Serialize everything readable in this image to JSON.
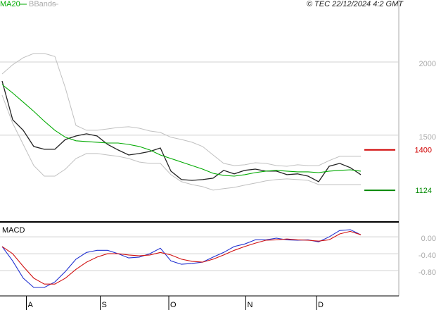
{
  "chart_data": [
    {
      "type": "line",
      "source": "© TEC 22/12/2024 4:2 GMT",
      "x": [
        0,
        1,
        2,
        3,
        4,
        5,
        6,
        7,
        8,
        9,
        10,
        11,
        12,
        13,
        14,
        15,
        16,
        17,
        18,
        19,
        20,
        21,
        22,
        23,
        24,
        25,
        26,
        27,
        28,
        29,
        30,
        31,
        32,
        33,
        34
      ],
      "xlim": [
        -0.2,
        37.6
      ],
      "xticks": [
        {
          "value": 2.3,
          "label": "A"
        },
        {
          "value": 9.3,
          "label": "S"
        },
        {
          "value": 15.8,
          "label": "O"
        },
        {
          "value": 23.1,
          "label": "N"
        },
        {
          "value": 29.8,
          "label": "D"
        }
      ],
      "ylim": [
        913,
        2423
      ],
      "yticks": [
        1500,
        2000
      ],
      "grid": true,
      "series": [
        {
          "color": "#222222",
          "values": [
            1870,
            1606,
            1534,
            1423,
            1404,
            1404,
            1471,
            1495,
            1510,
            1495,
            1437,
            1399,
            1365,
            1375,
            1389,
            1413,
            1255,
            1197,
            1192,
            1197,
            1207,
            1260,
            1236,
            1260,
            1269,
            1255,
            1255,
            1231,
            1236,
            1221,
            1183,
            1288,
            1308,
            1279,
            1231
          ]
        },
        {
          "name": "MA20",
          "color": "#00aa00",
          "values": [
            1846,
            1788,
            1726,
            1663,
            1596,
            1534,
            1486,
            1462,
            1457,
            1452,
            1447,
            1447,
            1437,
            1423,
            1399,
            1365,
            1341,
            1317,
            1293,
            1269,
            1240,
            1226,
            1221,
            1231,
            1245,
            1255,
            1260,
            1255,
            1250,
            1250,
            1245,
            1255,
            1260,
            1264,
            1255
          ]
        },
        {
          "name": "BBands",
          "color": "#c0c0c0",
          "upper": [
            1918,
            1981,
            2029,
            2058,
            2058,
            2038,
            1822,
            1567,
            1534,
            1534,
            1543,
            1553,
            1558,
            1548,
            1529,
            1519,
            1486,
            1471,
            1452,
            1423,
            1365,
            1308,
            1293,
            1298,
            1312,
            1308,
            1293,
            1288,
            1298,
            1293,
            1293,
            1327,
            1356,
            1356,
            1356
          ],
          "lower": [
            1774,
            1582,
            1437,
            1293,
            1221,
            1221,
            1269,
            1341,
            1375,
            1375,
            1365,
            1356,
            1341,
            1317,
            1308,
            1308,
            1231,
            1183,
            1163,
            1149,
            1125,
            1135,
            1144,
            1159,
            1173,
            1188,
            1197,
            1202,
            1197,
            1192,
            1163,
            1163,
            1163,
            1163,
            1163
          ]
        }
      ],
      "markers": [
        {
          "value": 1400,
          "color": "#d00000"
        },
        {
          "value": 1124,
          "color": "#008800"
        }
      ]
    },
    {
      "type": "line",
      "title": "MACD",
      "ylim": [
        -1.4,
        0.32
      ],
      "yticks": [
        {
          "value": 0,
          "label": "0.00"
        },
        {
          "value": -0.4,
          "label": "-0.40"
        },
        {
          "value": -0.8,
          "label": "-0.80"
        }
      ],
      "grid": true,
      "series": [
        {
          "color": "#2030d0",
          "values": [
            -0.23,
            -0.57,
            -0.98,
            -1.2,
            -1.2,
            -1.07,
            -0.82,
            -0.53,
            -0.37,
            -0.32,
            -0.32,
            -0.4,
            -0.5,
            -0.48,
            -0.4,
            -0.27,
            -0.57,
            -0.65,
            -0.63,
            -0.6,
            -0.48,
            -0.37,
            -0.23,
            -0.17,
            -0.07,
            -0.07,
            -0.03,
            -0.07,
            -0.08,
            -0.07,
            -0.12,
            0,
            0.15,
            0.17,
            0.05
          ]
        },
        {
          "color": "#d01010",
          "values": [
            -0.23,
            -0.4,
            -0.7,
            -0.98,
            -1.12,
            -1.12,
            -0.98,
            -0.77,
            -0.6,
            -0.48,
            -0.4,
            -0.4,
            -0.43,
            -0.45,
            -0.43,
            -0.37,
            -0.43,
            -0.53,
            -0.58,
            -0.6,
            -0.53,
            -0.43,
            -0.32,
            -0.23,
            -0.15,
            -0.08,
            -0.07,
            -0.05,
            -0.07,
            -0.08,
            -0.1,
            -0.07,
            0.07,
            0.13,
            0.05
          ]
        }
      ]
    }
  ]
}
